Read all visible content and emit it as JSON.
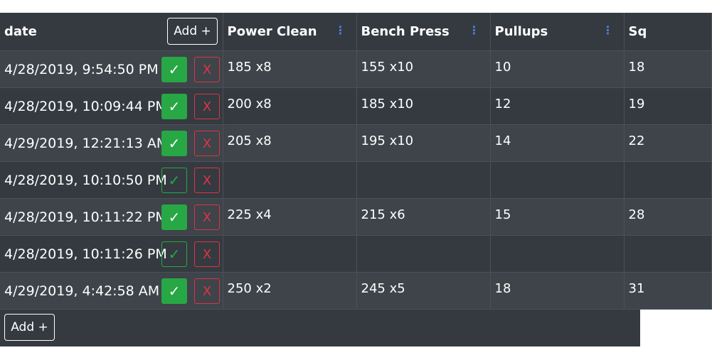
{
  "header": {
    "date_label": "date",
    "add_column_label": "Add +",
    "columns": [
      "Power Clean",
      "Bench Press",
      "Pullups",
      "Sq"
    ],
    "menu_icon": "⋮"
  },
  "rows": [
    {
      "date": "4/28/2019, 9:54:50 PM",
      "done": true,
      "values": [
        "185 x8",
        "155 x10",
        "10",
        "18"
      ]
    },
    {
      "date": "4/28/2019, 10:09:44 PM",
      "done": true,
      "values": [
        "200 x8",
        "185 x10",
        "12",
        "19"
      ]
    },
    {
      "date": "4/29/2019, 12:21:13 AM",
      "done": true,
      "values": [
        "205 x8",
        "195 x10",
        "14",
        "22"
      ]
    },
    {
      "date": "4/28/2019, 10:10:50 PM",
      "done": false,
      "values": [
        "",
        "",
        "",
        ""
      ]
    },
    {
      "date": "4/28/2019, 10:11:22 PM",
      "done": true,
      "values": [
        "225 x4",
        "215 x6",
        "15",
        "28"
      ]
    },
    {
      "date": "4/28/2019, 10:11:26 PM",
      "done": false,
      "values": [
        "",
        "",
        "",
        ""
      ]
    },
    {
      "date": "4/29/2019, 4:42:58 AM",
      "done": true,
      "values": [
        "250 x2",
        "245 x5",
        "18",
        "31"
      ]
    }
  ],
  "check_icon": "✓",
  "x_icon": "X",
  "footer": {
    "add_row_label": "Add +"
  },
  "colors": {
    "background": "#343a40",
    "row_alt": "#3e444a",
    "success": "#28a745",
    "danger": "#dc3545",
    "menu_accent": "#4f7fd9"
  }
}
